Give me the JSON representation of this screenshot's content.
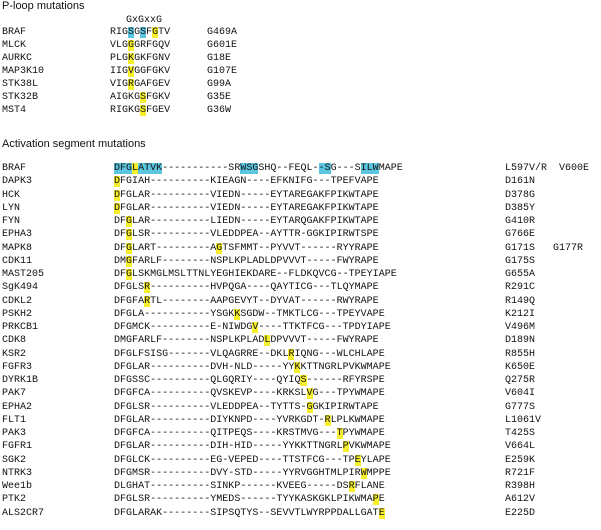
{
  "ploop": {
    "title": "P-loop mutations",
    "motif": "GxGxxG",
    "rows": [
      {
        "name": "BRAF",
        "seq": "RIGSGSFGTV",
        "mut": "G469A",
        "hl": [
          [
            3,
            "b"
          ],
          [
            5,
            "b"
          ],
          [
            7,
            "y"
          ]
        ]
      },
      {
        "name": "MLCK",
        "seq": "VLGGGRFGQV",
        "mut": "G601E",
        "hl": [
          [
            3,
            "y"
          ]
        ]
      },
      {
        "name": "AURKC",
        "seq": "PLGKGKFGNV",
        "mut": "G18E",
        "hl": [
          [
            3,
            "y"
          ]
        ]
      },
      {
        "name": "MAP3K10",
        "seq": "IIGVGGFGKV",
        "mut": "G107E",
        "hl": [
          [
            3,
            "y"
          ]
        ]
      },
      {
        "name": "STK38L",
        "seq": "VIGRGAFGEV",
        "mut": "G99A",
        "hl": [
          [
            3,
            "y"
          ]
        ]
      },
      {
        "name": "STK32B",
        "seq": "AIGKGSFGKV",
        "mut": "G35E",
        "hl": [
          [
            5,
            "y"
          ]
        ]
      },
      {
        "name": "MST4",
        "seq": "RIGKGSFGEV",
        "mut": "G36W",
        "hl": [
          [
            5,
            "y"
          ]
        ]
      }
    ]
  },
  "activation": {
    "title": "Activation segment mutations",
    "rows": [
      {
        "name": "BRAF",
        "seq": "DFGLATVK-----------SRWSGSHQ--FEQL--SG---SILWMAPE",
        "mut": "L597V/R  V600E",
        "hl": [
          [
            0,
            "b"
          ],
          [
            1,
            "b"
          ],
          [
            2,
            "b"
          ],
          [
            3,
            "y"
          ],
          [
            4,
            "b"
          ],
          [
            5,
            "b"
          ],
          [
            6,
            "b"
          ],
          [
            7,
            "b"
          ],
          [
            21,
            "b"
          ],
          [
            22,
            "b"
          ],
          [
            23,
            "b"
          ],
          [
            34,
            "b"
          ],
          [
            35,
            "b"
          ],
          [
            41,
            "b"
          ],
          [
            42,
            "b"
          ],
          [
            43,
            "b"
          ]
        ]
      },
      {
        "name": "DAPK3",
        "seq": "DFGIAH----------KIEAGN----EFKNIFG---TPEFVAPE",
        "mut": "D161N",
        "hl": [
          [
            0,
            "y"
          ]
        ]
      },
      {
        "name": "HCK",
        "seq": "DFGLAR----------VIEDN-----EYTAREGAKFPIKWTAPE",
        "mut": "D378G",
        "hl": [
          [
            0,
            "y"
          ]
        ]
      },
      {
        "name": "LYN",
        "seq": "DFGLAR----------VIEDN-----EYTAREGAKFPIKWTAPE",
        "mut": "D385Y",
        "hl": [
          [
            0,
            "y"
          ]
        ]
      },
      {
        "name": "FYN",
        "seq": "DFGLAR----------LIEDN-----EYTARQGAKFPIKWTAPE",
        "mut": "G410R",
        "hl": [
          [
            2,
            "y"
          ]
        ]
      },
      {
        "name": "EPHA3",
        "seq": "DFGLSR----------VLEDDPEA--AYTTR-GGKIPIRWTSPE",
        "mut": "G766E",
        "hl": [
          [
            2,
            "y"
          ]
        ]
      },
      {
        "name": "MAPK8",
        "seq": "DFGLART---------AGTSFMMT--PYVVT------RYYRAPE",
        "mut": "G171S   G177R",
        "hl": [
          [
            2,
            "y"
          ],
          [
            17,
            "y"
          ]
        ]
      },
      {
        "name": "CDK11",
        "seq": "DMGFARLF--------NSPLKPLADLDPVVVT-----FWYRAPE",
        "mut": "G175S",
        "hl": [
          [
            2,
            "y"
          ]
        ]
      },
      {
        "name": "MAST205",
        "seq": "DFGLSKMGLMSLTTNLYEGHIEKDARE--FLDKQVCG--TPEYIAPE",
        "mut": "G655A",
        "hl": [
          [
            2,
            "y"
          ]
        ]
      },
      {
        "name": "SgK494",
        "seq": "DFGLSR----------HVPQGA----QAYTICG---TLQYMAPE",
        "mut": "R291C",
        "hl": [
          [
            5,
            "y"
          ]
        ]
      },
      {
        "name": "CDKL2",
        "seq": "DFGFARTL--------AAPGEVYT--DYVAT------RWYRAPE",
        "mut": "R149Q",
        "hl": [
          [
            5,
            "y"
          ]
        ]
      },
      {
        "name": "PSKH2",
        "seq": "DFGLA-----------YSGKKSGDW--TMKTLCG---TPEYVAPE",
        "mut": "K212I",
        "hl": [
          [
            20,
            "y"
          ]
        ]
      },
      {
        "name": "PRKCB1",
        "seq": "DFGMCK----------E-NIWDGV----TTKTFCG---TPDYIAPE",
        "mut": "V496M",
        "hl": [
          [
            23,
            "y"
          ]
        ]
      },
      {
        "name": "CDK8",
        "seq": "DMGFARLF--------NSPLKPLADLDPVVVT-----FWYRAPE",
        "mut": "D189N",
        "hl": [
          [
            25,
            "y"
          ]
        ]
      },
      {
        "name": "KSR2",
        "seq": "DFGLFSISG-------VLQAGRRE--DKLRIQNG---WLCHLAPE",
        "mut": "R855H",
        "hl": [
          [
            29,
            "y"
          ]
        ]
      },
      {
        "name": "FGFR3",
        "seq": "DFGLAR----------DVH-NLD-----YYKKTTNGRLPVKWMAPE",
        "mut": "K650E",
        "hl": [
          [
            30,
            "y"
          ]
        ]
      },
      {
        "name": "DYRK1B",
        "seq": "DFGSSC----------QLGQRIY----QYIQS------RFYRSPE",
        "mut": "Q275R",
        "hl": [
          [
            31,
            "y"
          ]
        ]
      },
      {
        "name": "PAK7",
        "seq": "DFGFCA----------QVSKEVP----KRKSLVG---TPYWMAPE",
        "mut": "V604I",
        "hl": [
          [
            32,
            "y"
          ]
        ]
      },
      {
        "name": "EPHA2",
        "seq": "DFGLSR----------VLEDDPEA--TYTTS-GGKIPIRWTAPE",
        "mut": "G777S",
        "hl": [
          [
            32,
            "y"
          ]
        ]
      },
      {
        "name": "FLT1",
        "seq": "DFGLAR----------DIYKNPD----YVRKGDT-RLPLKWMAPE",
        "mut": "L1061V",
        "hl": [
          [
            35,
            "y"
          ]
        ]
      },
      {
        "name": "PAK3",
        "seq": "DFGFCA----------QITPEQS----KRSTMVG---TPYWMAPE",
        "mut": "T425S",
        "hl": [
          [
            37,
            "y"
          ]
        ]
      },
      {
        "name": "FGFR1",
        "seq": "DFGLAR----------DIH-HID-----YYKKTTNGRLPVKWMAPE",
        "mut": "V664L",
        "hl": [
          [
            38,
            "y"
          ]
        ]
      },
      {
        "name": "SGK2",
        "seq": "DFGLCK----------EG-VEPED----TTSTFCG---TPEYLAPE",
        "mut": "E259K",
        "hl": [
          [
            40,
            "y"
          ]
        ]
      },
      {
        "name": "NTRK3",
        "seq": "DFGMSR----------DVY-STD-----YYRVGGHTMLPIRWMPPE",
        "mut": "R721F",
        "hl": [
          [
            41,
            "y"
          ]
        ]
      },
      {
        "name": "Wee1b",
        "seq": "DLGHAT----------SINKP------KVEEG-----DSRFLANE",
        "mut": "R398H",
        "hl": [
          [
            39,
            "y"
          ]
        ]
      },
      {
        "name": "PTK2",
        "seq": "DFGLSR----------YMEDS------TYYKASKGKLPIKWMAPE",
        "mut": "A612V",
        "hl": [
          [
            43,
            "y"
          ]
        ]
      },
      {
        "name": "ALS2CR7",
        "seq": "DFGLARAK--------SIPSQTYS--SEVVTLWYRPPDALLGATE",
        "mut": "E225D",
        "hl": [
          [
            44,
            "y"
          ]
        ]
      }
    ]
  }
}
